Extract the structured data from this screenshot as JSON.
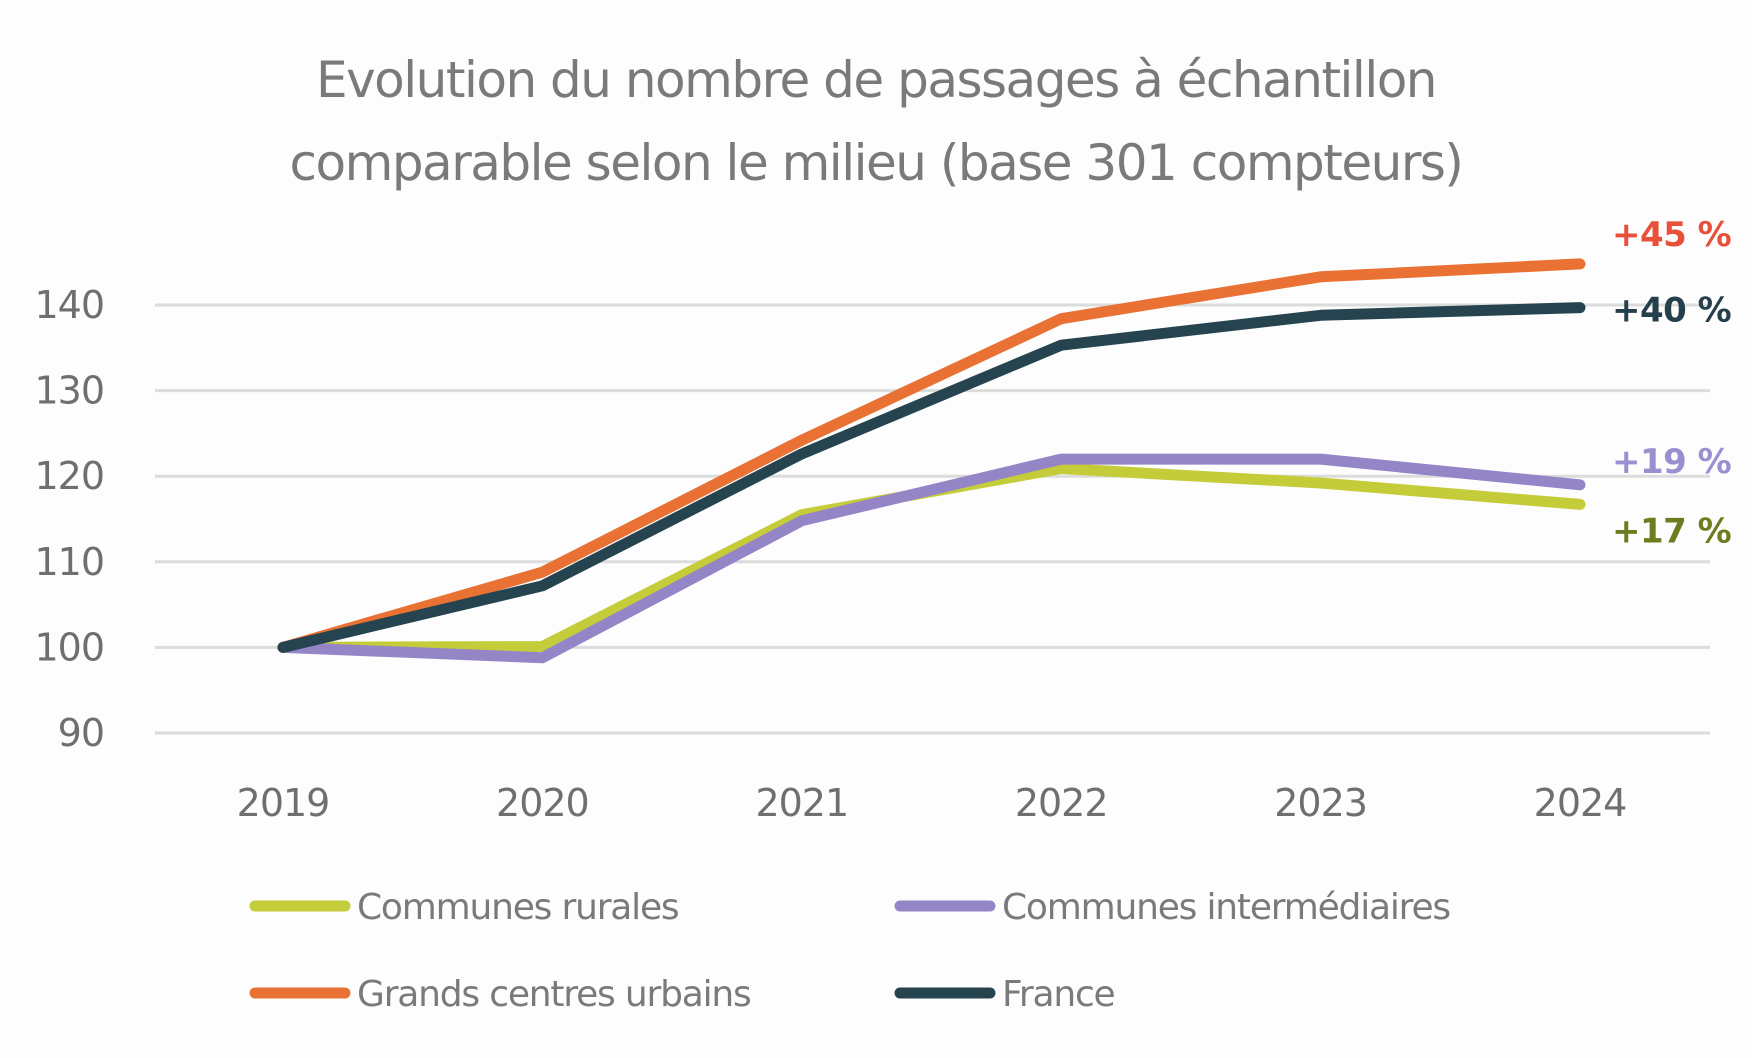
{
  "chart_data": {
    "type": "line",
    "title": "Evolution du nombre de passages à échantillon comparable selon le milieu (base 301 compteurs)",
    "title_lines": [
      "Evolution du nombre de passages à échantillon",
      "comparable selon le milieu (base 301 compteurs)"
    ],
    "xlabel": "",
    "ylabel": "",
    "x": [
      "2019",
      "2020",
      "2021",
      "2022",
      "2023",
      "2024"
    ],
    "ylim": [
      90,
      140
    ],
    "yticks": [
      90,
      100,
      110,
      120,
      130,
      140
    ],
    "ytick_labels": [
      "90",
      "100",
      "110",
      "120",
      "130",
      "140"
    ],
    "grid": true,
    "legend_position": "bottom",
    "series": [
      {
        "name": "Communes rurales",
        "color": "#c5cc3a",
        "label_color": "#6b7d1f",
        "values": [
          100,
          100.1,
          115.5,
          120.9,
          119.2,
          116.7
        ],
        "end_label": "+17 %"
      },
      {
        "name": "Communes intermédiaires",
        "color": "#9485c7",
        "label_color": "#9b8fd0",
        "values": [
          100,
          98.8,
          114.8,
          122.0,
          122.0,
          119.0
        ],
        "end_label": "+19 %"
      },
      {
        "name": "Grands centres urbains",
        "color": "#e97134",
        "label_color": "#e8503a",
        "values": [
          100,
          108.8,
          124.2,
          138.4,
          143.3,
          144.8
        ],
        "end_label": "+45 %"
      },
      {
        "name": "France",
        "color": "#25444f",
        "label_color": "#263f4c",
        "values": [
          100,
          107.2,
          122.6,
          135.3,
          138.8,
          139.7
        ],
        "end_label": "+40 %"
      }
    ],
    "legend_order": [
      0,
      1,
      2,
      3
    ]
  }
}
